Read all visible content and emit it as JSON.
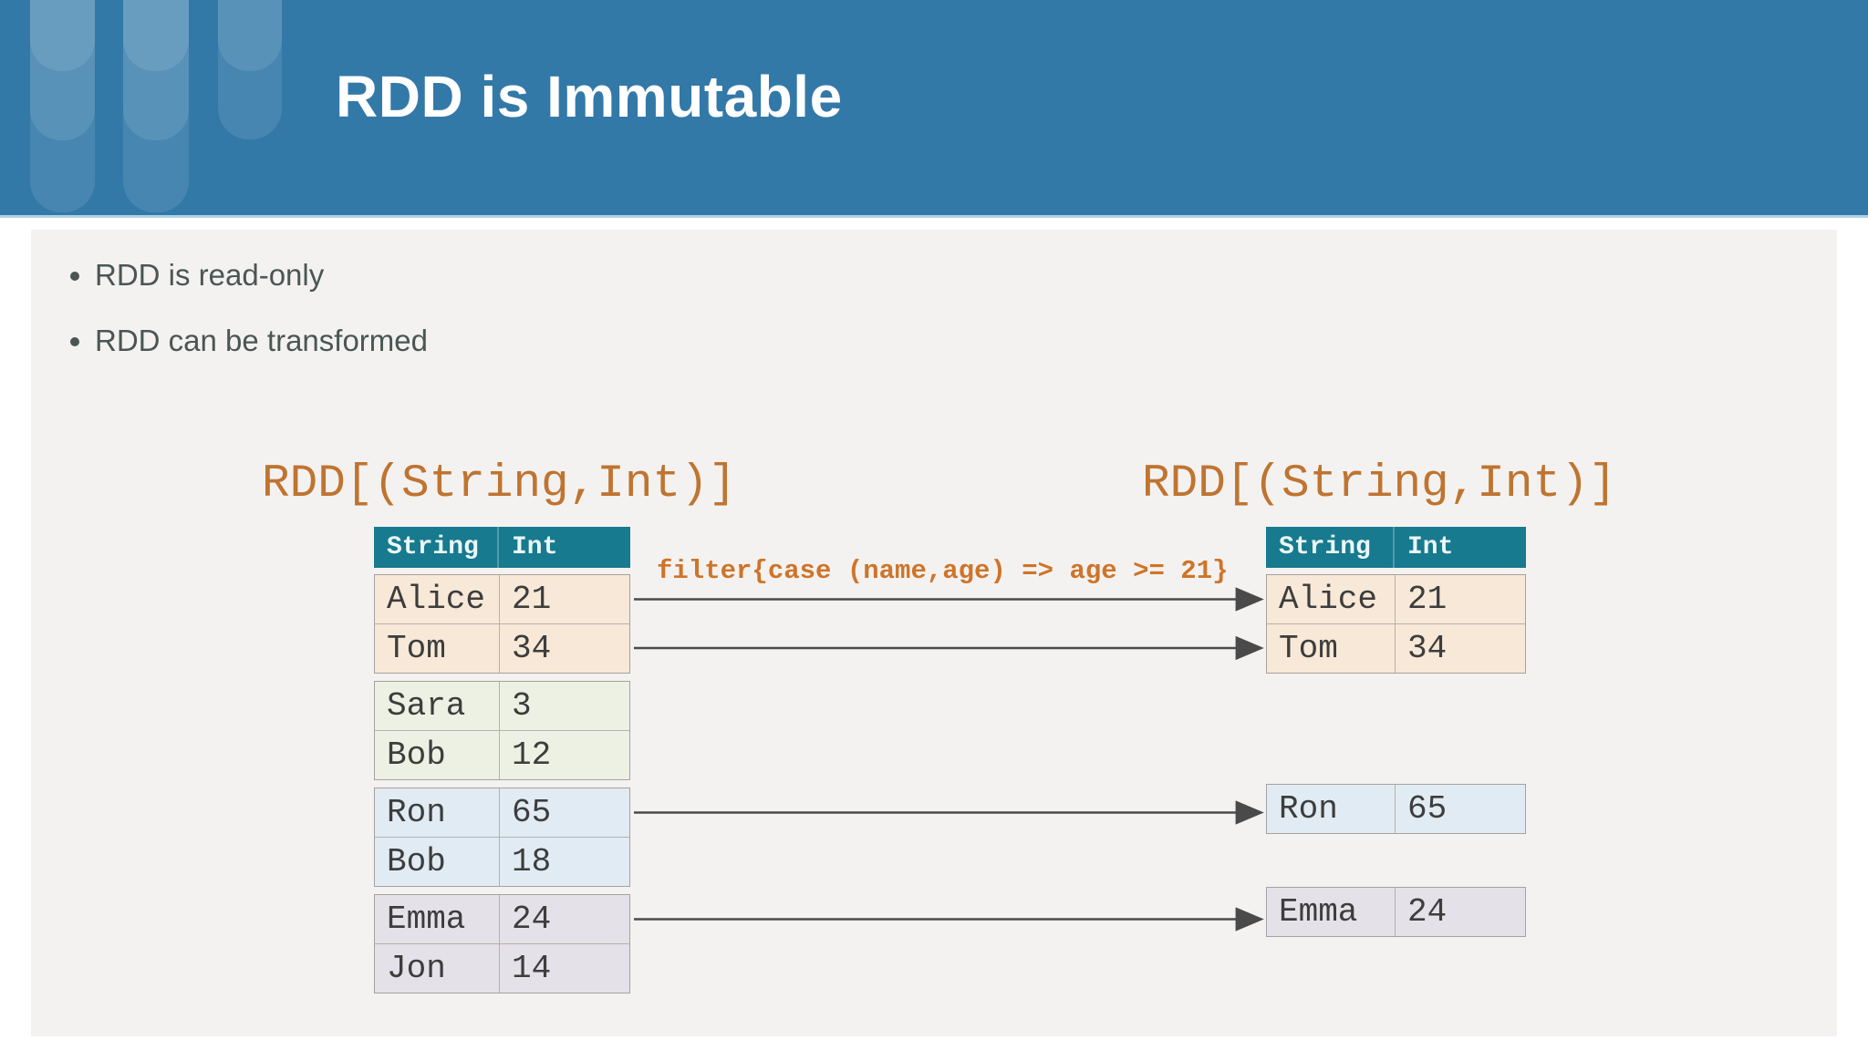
{
  "slide": {
    "title": "RDD is Immutable",
    "bullets": [
      "RDD is read-only",
      "RDD can be transformed"
    ]
  },
  "diagram": {
    "left_rdd": {
      "label": "RDD[(String,Int)]",
      "columns": [
        "String",
        "Int"
      ],
      "partitions": [
        {
          "color": "#f8e8d7",
          "rows": [
            [
              "Alice",
              "21"
            ],
            [
              "Tom",
              "34"
            ]
          ]
        },
        {
          "color": "#edf1e3",
          "rows": [
            [
              "Sara",
              "3"
            ],
            [
              "Bob",
              "12"
            ]
          ]
        },
        {
          "color": "#e1ebf3",
          "rows": [
            [
              "Ron",
              "65"
            ],
            [
              "Bob",
              "18"
            ]
          ]
        },
        {
          "color": "#e5e1e8",
          "rows": [
            [
              "Emma",
              "24"
            ],
            [
              "Jon",
              "14"
            ]
          ]
        }
      ]
    },
    "transformation": "filter{case (name,age) => age >= 21}",
    "right_rdd": {
      "label": "RDD[(String,Int)]",
      "columns": [
        "String",
        "Int"
      ],
      "partitions": [
        {
          "color": "#f8e8d7",
          "rows": [
            [
              "Alice",
              "21"
            ],
            [
              "Tom",
              "34"
            ]
          ]
        },
        {
          "color": "#e1ebf3",
          "rows": [
            [
              "Ron",
              "65"
            ]
          ]
        },
        {
          "color": "#e5e1e8",
          "rows": [
            [
              "Emma",
              "24"
            ]
          ]
        }
      ]
    },
    "arrows": [
      {
        "from": [
          0,
          0
        ],
        "to": [
          0,
          0
        ]
      },
      {
        "from": [
          0,
          1
        ],
        "to": [
          0,
          1
        ]
      },
      {
        "from": [
          2,
          0
        ],
        "to": [
          1,
          0
        ]
      },
      {
        "from": [
          3,
          0
        ],
        "to": [
          2,
          0
        ]
      }
    ]
  },
  "colors": {
    "header_blue": "#3379a8",
    "panel_gray": "#f3f2f1",
    "table_header_teal": "#177a8e",
    "table_header_text": "#ecf7f8",
    "label_orange": "#bf7430",
    "filter_orange": "#cf7428",
    "row_text": "#3d3d3d",
    "bullet_text": "#4b5654",
    "arrow_gray": "#4a4a4a",
    "partition_peach": "#f8e8d7",
    "partition_green": "#edf1e3",
    "partition_blue": "#e1ebf3",
    "partition_lavender": "#e5e1e8"
  }
}
